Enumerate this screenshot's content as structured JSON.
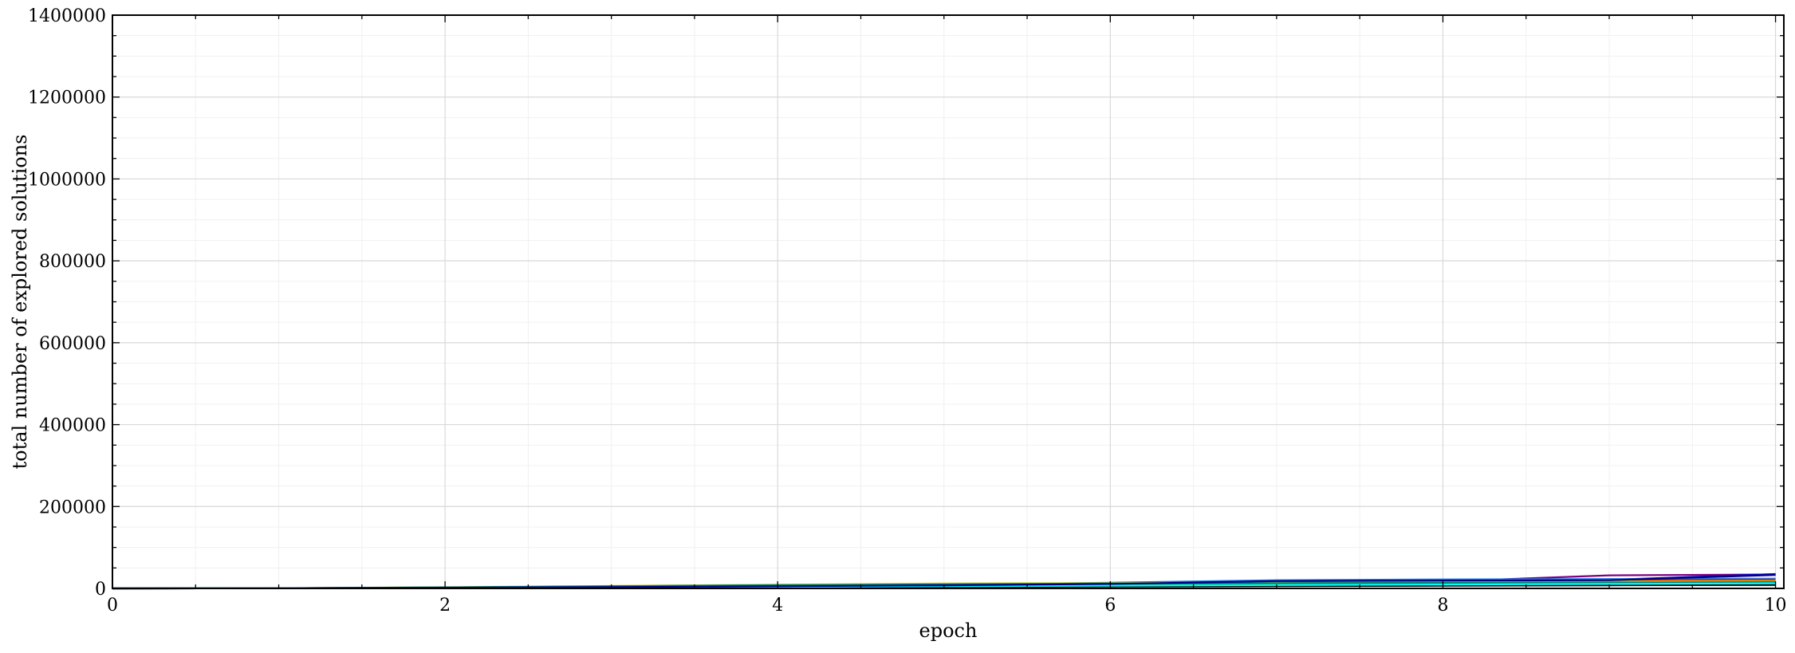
{
  "chart_data": {
    "type": "line",
    "xlabel": "epoch",
    "ylabel": "total number of explored solutions",
    "xlim": [
      0,
      10.05
    ],
    "ylim": [
      0,
      1400000
    ],
    "x_ticks": [
      "0",
      "2",
      "4",
      "6",
      "8",
      "10"
    ],
    "y_ticks": [
      "0",
      "200000",
      "400000",
      "600000",
      "800000",
      "1000000",
      "1200000",
      "1400000"
    ],
    "grid": true,
    "legend": "none",
    "x": [
      0,
      1,
      2,
      3,
      4,
      5,
      6,
      7,
      8,
      9,
      10
    ],
    "series": [
      {
        "color": "#800080",
        "values": [
          0,
          500,
          2000,
          4000,
          6000,
          8000,
          11000,
          14000,
          17000,
          32000,
          34000
        ]
      },
      {
        "color": "#0000cc",
        "values": [
          0,
          400,
          1800,
          3500,
          5500,
          8000,
          12000,
          19000,
          20000,
          21000,
          35000
        ]
      },
      {
        "color": "#1f77e4",
        "values": [
          0,
          450,
          2200,
          4200,
          6500,
          9000,
          14000,
          20000,
          22000,
          23000,
          24000
        ]
      },
      {
        "color": "#ff0000",
        "values": [
          0,
          350,
          1500,
          3000,
          5000,
          7000,
          10000,
          13000,
          16000,
          19000,
          21000
        ]
      },
      {
        "color": "#cccc00",
        "values": [
          0,
          500,
          3000,
          6000,
          9000,
          12000,
          13000,
          14000,
          15000,
          17000,
          18000
        ]
      },
      {
        "color": "#00aa00",
        "values": [
          0,
          400,
          2500,
          5000,
          7500,
          9500,
          11000,
          12000,
          13000,
          14000,
          15000
        ]
      },
      {
        "color": "#008080",
        "values": [
          0,
          420,
          2600,
          5200,
          8000,
          10000,
          12000,
          13000,
          13500,
          14500,
          15500
        ]
      },
      {
        "color": "#000000",
        "values": [
          0,
          200,
          800,
          1600,
          2500,
          3500,
          4500,
          5500,
          6500,
          7500,
          8500
        ]
      },
      {
        "color": "#00ffff",
        "values": [
          0,
          300,
          1200,
          2400,
          3800,
          5200,
          6800,
          8200,
          9600,
          11000,
          12500
        ]
      },
      {
        "color": "#000080",
        "values": [
          0,
          380,
          1700,
          3300,
          5200,
          7500,
          11000,
          18000,
          19000,
          20000,
          33000
        ]
      }
    ]
  }
}
